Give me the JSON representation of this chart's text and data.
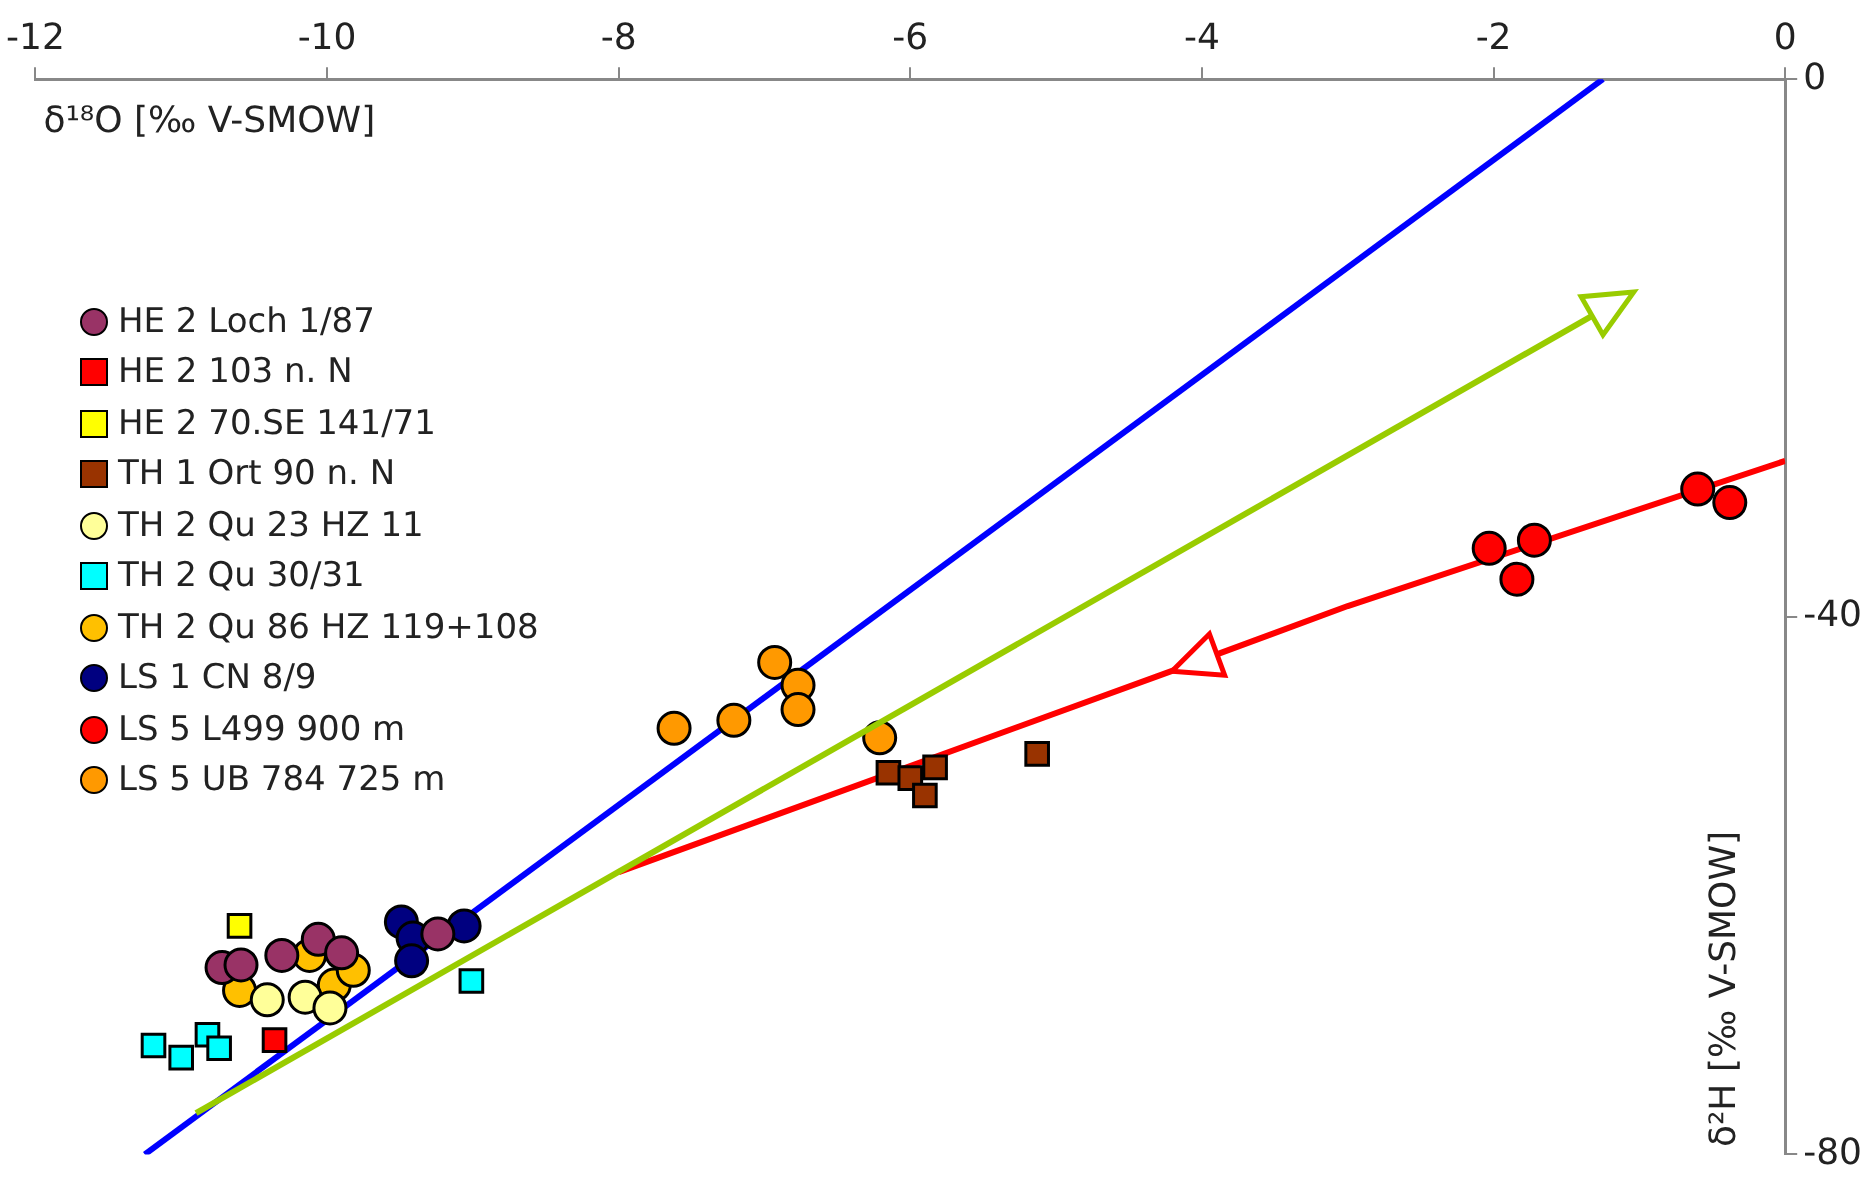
{
  "chart_data": {
    "type": "scatter",
    "xlabel": "δ¹⁸O [‰ V-SMOW]",
    "ylabel": "δ²H [‰ V-SMOW]",
    "xlim": [
      -12,
      0
    ],
    "xticks": [
      -12,
      -10,
      -8,
      -6,
      -4,
      -2,
      0
    ],
    "ylim": [
      -80,
      0
    ],
    "yticks": [
      -80,
      -40,
      0
    ],
    "grid": false,
    "legend": "left",
    "series": [
      {
        "name": "HE 2 Loch 1/87",
        "color": "#993366",
        "marker": "circle",
        "x": [
          -10.72,
          -10.59,
          -10.31,
          -10.06,
          -9.9,
          -9.24
        ],
        "values": [
          -66.1,
          -65.9,
          -65.2,
          -64.0,
          -65.0,
          -63.6
        ]
      },
      {
        "name": "HE 2 103 n. N",
        "color": "#ff0000",
        "marker": "square",
        "x": [
          -10.36
        ],
        "values": [
          -71.5
        ]
      },
      {
        "name": "HE 2 70.SE 141/71",
        "color": "#ffff00",
        "marker": "square",
        "x": [
          -10.6
        ],
        "values": [
          -63.0
        ]
      },
      {
        "name": "TH 1 Ort 90 n. N",
        "color": "#993300",
        "marker": "square",
        "x": [
          -6.15,
          -6.0,
          -5.83,
          -5.9,
          -5.13
        ],
        "values": [
          -51.6,
          -52.0,
          -51.2,
          -53.3,
          -50.2
        ]
      },
      {
        "name": "TH 2 Qu 23 HZ 11",
        "color": "#ffff99",
        "marker": "circle",
        "x": [
          -10.41,
          -10.15,
          -9.98
        ],
        "values": [
          -68.5,
          -68.3,
          -69.1
        ]
      },
      {
        "name": "TH 2 Qu 30/31",
        "color": "#00ffff",
        "marker": "square",
        "x": [
          -11.19,
          -11.0,
          -10.82,
          -10.74,
          -9.01
        ],
        "values": [
          -71.9,
          -72.8,
          -71.1,
          -72.1,
          -67.1
        ]
      },
      {
        "name": "TH 2 Qu 86 HZ 119+108",
        "color": "#ffc000",
        "marker": "circle",
        "x": [
          -10.6,
          -10.12,
          -9.95,
          -9.82
        ],
        "values": [
          -67.8,
          -65.2,
          -67.4,
          -66.3
        ]
      },
      {
        "name": "LS 1 CN 8/9",
        "color": "#000080",
        "marker": "circle",
        "x": [
          -9.49,
          -9.41,
          -9.42,
          -9.06
        ],
        "values": [
          -62.7,
          -63.9,
          -65.6,
          -63.0
        ]
      },
      {
        "name": "LS 5 L499 900 m",
        "color": "#ff0000",
        "marker": "circle",
        "x": [
          -2.03,
          -1.72,
          -1.84,
          -0.6,
          -0.38
        ],
        "values": [
          -34.9,
          -34.3,
          -37.2,
          -30.5,
          -31.5
        ]
      },
      {
        "name": "LS 5 UB 784 725 m",
        "color": "#ff9900",
        "marker": "circle",
        "x": [
          -6.93,
          -6.77,
          -6.77,
          -7.21,
          -7.62,
          -6.21
        ],
        "values": [
          -43.4,
          -45.1,
          -46.9,
          -47.7,
          -48.3,
          -49.0
        ]
      },
      {
        "type": "line",
        "color": "#0000ff",
        "marker": "none",
        "x": [
          -11.25,
          -1.25
        ],
        "values": [
          -80,
          0
        ]
      },
      {
        "type": "line",
        "color": "#ff0000",
        "marker": "none",
        "x": [
          -8.0,
          -4.2,
          -3.0,
          0
        ],
        "values": [
          -59.0,
          -44.0,
          -39.2,
          -28.4
        ]
      }
    ]
  }
}
